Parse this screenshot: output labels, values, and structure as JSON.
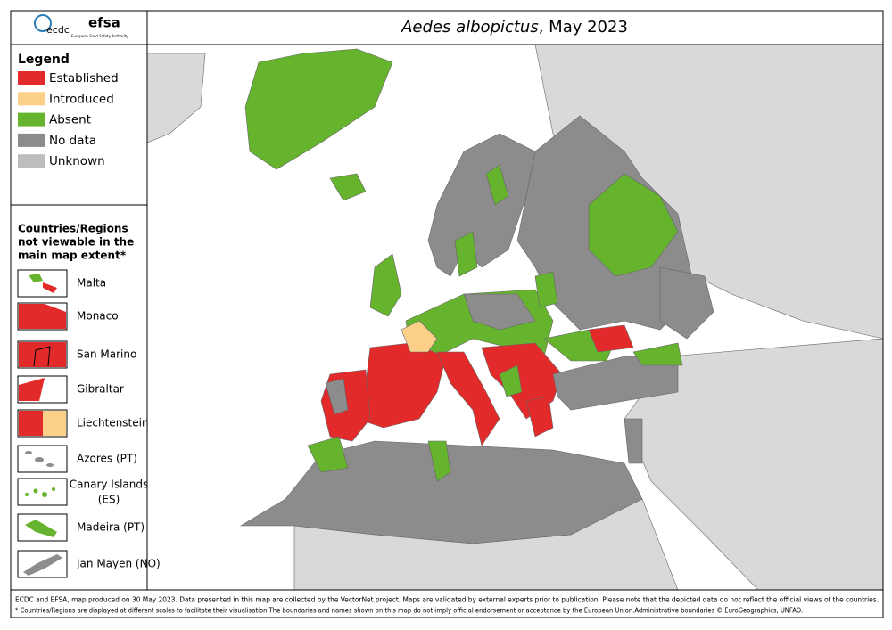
{
  "header": {
    "title_italic": "Aedes albopictus",
    "title_rest": ", May 2023",
    "logo_ecdc": "ecdc",
    "logo_efsa": "efsa",
    "logo_efsa_sub": "European Food Safety Authority"
  },
  "legend": {
    "title": "Legend",
    "items": [
      {
        "label": "Established",
        "color": "#e32a2a"
      },
      {
        "label": "Introduced",
        "color": "#fdd08a"
      },
      {
        "label": "Absent",
        "color": "#66b32e"
      },
      {
        "label": "No data",
        "color": "#8c8c8c"
      },
      {
        "label": "Unknown",
        "color": "#bdbdbd"
      }
    ]
  },
  "insets": {
    "title": [
      "Countries/Regions",
      "not viewable in the",
      "main map extent*"
    ],
    "items": [
      "Malta",
      "Monaco",
      "San Marino",
      "Gibraltar",
      "Liechtenstein",
      "Azores (PT)",
      [
        "Canary Islands",
        "(ES)"
      ],
      "Madeira (PT)",
      "Jan Mayen (NO)"
    ]
  },
  "footer": [
    "ECDC and EFSA, map produced on 30 May 2023. Data presented in this map are collected by the VectorNet project. Maps are validated by external experts prior to publication. Please note that the depicted data do not reflect the official views of the countries.",
    "* Countries/Regions are displayed at different scales to facilitate their visualisation.The boundaries and names shown on this map do not imply official endorsement or acceptance by the European Union.Administrative boundaries © EuroGeographics, UNFAO."
  ]
}
